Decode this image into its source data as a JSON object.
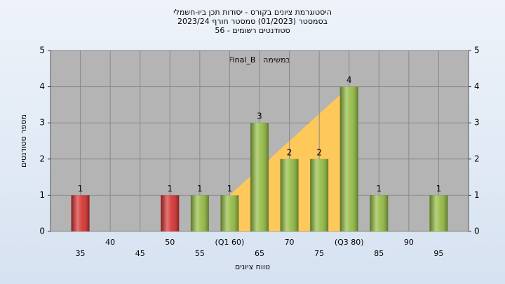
{
  "chart_data": {
    "type": "bar",
    "title": [
      "היסטוגרמת ציונים בקורס - יסודות תכן ביו-חשמלי",
      "בסמסטר (01/2023) סמסטר חורף 2023/24",
      "סטודנטים רשומים - 56"
    ],
    "annotation": "Final_B : במשימה",
    "x_label": "טווח ציונים",
    "y_label": "מספר סטודנטים",
    "categories": [
      "35",
      "40",
      "45",
      "50",
      "55",
      "(Q1 60)",
      "65",
      "70",
      "75",
      "(Q3 80)",
      "85",
      "90",
      "95"
    ],
    "values": [
      1,
      0,
      0,
      1,
      1,
      1,
      3,
      2,
      2,
      4,
      1,
      0,
      1
    ],
    "colors": [
      "#d42a2a",
      "#8fb83c",
      "#8fb83c",
      "#d42a2a",
      "#8fb83c",
      "#8fb83c",
      "#8fb83c",
      "#8fb83c",
      "#8fb83c",
      "#8fb83c",
      "#8fb83c",
      "#8fb83c",
      "#8fb83c"
    ],
    "quartiles": [
      "(Q1 60)",
      "(Q3 80)"
    ],
    "quartile_color": "#ffc85a",
    "ylim": [
      0,
      5
    ],
    "yticks": [
      0,
      1,
      2,
      3,
      4,
      5
    ],
    "y2lim": [
      0,
      5
    ],
    "y2ticks": [
      0,
      1,
      2,
      3,
      4,
      5
    ],
    "grid": true
  }
}
